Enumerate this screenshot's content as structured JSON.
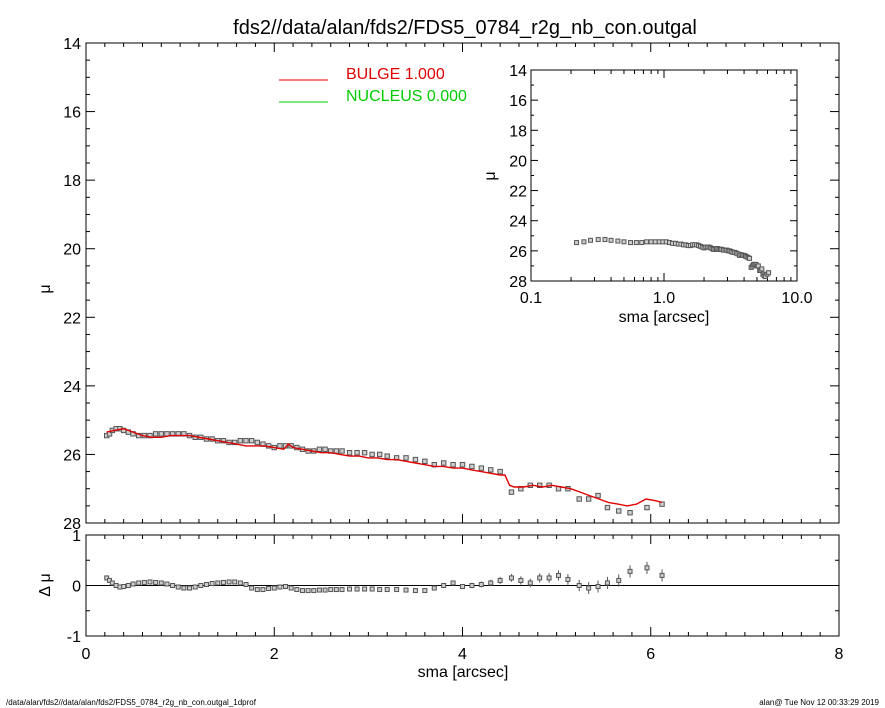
{
  "title": "fds2//data/alan/fds2/FDS5_0784_r2g_nb_con.outgal",
  "footer_left": "/data/alan/fds2//data/alan/fds2/FDS5_0784_r2g_nb_con.outgal_1dprof",
  "footer_right": "alan@  Tue Nov 12 00:33:29 2019",
  "colors": {
    "bulge": "#e00000",
    "nucleus": "#00cc00",
    "data": "#555555"
  },
  "chart_data": [
    {
      "type": "scatter",
      "panel": "main",
      "ylabel": "μ",
      "xlim": [
        0,
        8
      ],
      "ylim": [
        28,
        14
      ],
      "yticks": [
        "14",
        "16",
        "18",
        "20",
        "22",
        "24",
        "26",
        "28"
      ],
      "legend": [
        {
          "name": "BULGE  1.000",
          "color": "#e00000"
        },
        {
          "name": "NUCLEUS  0.000",
          "color": "#00cc00"
        }
      ],
      "legend_position": "top-center",
      "series": [
        {
          "name": "observed",
          "style": "markers",
          "x": [
            0.22,
            0.25,
            0.28,
            0.32,
            0.36,
            0.4,
            0.45,
            0.5,
            0.56,
            0.62,
            0.68,
            0.74,
            0.8,
            0.86,
            0.92,
            0.98,
            1.04,
            1.1,
            1.16,
            1.22,
            1.28,
            1.34,
            1.4,
            1.46,
            1.52,
            1.58,
            1.64,
            1.7,
            1.76,
            1.82,
            1.88,
            1.94,
            2.0,
            2.06,
            2.12,
            2.18,
            2.24,
            2.3,
            2.36,
            2.42,
            2.48,
            2.54,
            2.6,
            2.66,
            2.72,
            2.8,
            2.88,
            2.96,
            3.04,
            3.12,
            3.2,
            3.3,
            3.4,
            3.5,
            3.6,
            3.7,
            3.8,
            3.9,
            4.0,
            4.1,
            4.2,
            4.3,
            4.4,
            4.52,
            4.62,
            4.72,
            4.82,
            4.92,
            5.02,
            5.12,
            5.24,
            5.34,
            5.44,
            5.54,
            5.66,
            5.78,
            5.96,
            6.12
          ],
          "y": [
            25.45,
            25.4,
            25.3,
            25.25,
            25.25,
            25.3,
            25.35,
            25.4,
            25.45,
            25.45,
            25.45,
            25.4,
            25.4,
            25.4,
            25.4,
            25.4,
            25.4,
            25.45,
            25.5,
            25.5,
            25.55,
            25.55,
            25.6,
            25.6,
            25.65,
            25.65,
            25.6,
            25.6,
            25.6,
            25.65,
            25.7,
            25.75,
            25.8,
            25.75,
            25.75,
            25.75,
            25.8,
            25.85,
            25.9,
            25.9,
            25.85,
            25.85,
            25.9,
            25.9,
            25.9,
            25.95,
            25.95,
            25.95,
            26.0,
            26.0,
            26.05,
            26.1,
            26.1,
            26.15,
            26.2,
            26.3,
            26.25,
            26.3,
            26.3,
            26.35,
            26.4,
            26.45,
            26.5,
            27.1,
            27.0,
            26.9,
            26.9,
            26.9,
            27.0,
            27.0,
            27.3,
            27.3,
            27.2,
            27.55,
            27.65,
            27.7,
            27.55,
            27.45
          ]
        },
        {
          "name": "BULGE  1.000",
          "style": "line",
          "x": [
            0.22,
            0.3,
            0.4,
            0.5,
            0.6,
            0.7,
            0.8,
            0.9,
            1.0,
            1.1,
            1.2,
            1.3,
            1.4,
            1.5,
            1.6,
            1.7,
            1.8,
            1.9,
            2.0,
            2.1,
            2.15,
            2.2,
            2.3,
            2.4,
            2.5,
            2.6,
            2.7,
            2.8,
            2.9,
            3.0,
            3.1,
            3.2,
            3.3,
            3.4,
            3.5,
            3.6,
            3.7,
            3.8,
            3.9,
            4.0,
            4.1,
            4.2,
            4.3,
            4.4,
            4.45,
            4.5,
            4.55,
            4.65,
            4.75,
            4.85,
            4.95,
            5.05,
            5.15,
            5.25,
            5.35,
            5.45,
            5.55,
            5.65,
            5.75,
            5.85,
            5.95,
            6.05,
            6.12
          ],
          "y": [
            25.35,
            25.3,
            25.25,
            25.35,
            25.45,
            25.5,
            25.5,
            25.45,
            25.45,
            25.45,
            25.5,
            25.55,
            25.6,
            25.65,
            25.7,
            25.75,
            25.75,
            25.75,
            25.8,
            25.85,
            25.7,
            25.8,
            25.85,
            25.9,
            25.95,
            25.95,
            26.0,
            26.05,
            26.05,
            26.1,
            26.1,
            26.15,
            26.15,
            26.2,
            26.25,
            26.3,
            26.35,
            26.35,
            26.4,
            26.4,
            26.45,
            26.5,
            26.55,
            26.6,
            26.6,
            26.9,
            26.95,
            26.95,
            26.9,
            26.95,
            26.9,
            26.95,
            27.0,
            27.1,
            27.2,
            27.3,
            27.4,
            27.45,
            27.5,
            27.45,
            27.3,
            27.35,
            27.4
          ]
        }
      ]
    },
    {
      "type": "scatter",
      "panel": "residual",
      "xlabel": "sma [arcsec]",
      "ylabel": "Δ μ",
      "xlim": [
        0,
        8
      ],
      "ylim": [
        -1,
        1
      ],
      "xticks": [
        "0",
        "2",
        "4",
        "6",
        "8"
      ],
      "yticks": [
        "-1",
        "0",
        "1"
      ],
      "series": [
        {
          "name": "residual",
          "x": [
            0.22,
            0.25,
            0.28,
            0.32,
            0.36,
            0.4,
            0.45,
            0.5,
            0.56,
            0.62,
            0.68,
            0.74,
            0.8,
            0.86,
            0.92,
            0.98,
            1.04,
            1.1,
            1.16,
            1.22,
            1.28,
            1.34,
            1.4,
            1.46,
            1.52,
            1.58,
            1.64,
            1.7,
            1.76,
            1.82,
            1.88,
            1.94,
            2.0,
            2.06,
            2.12,
            2.18,
            2.24,
            2.3,
            2.36,
            2.42,
            2.48,
            2.54,
            2.6,
            2.66,
            2.72,
            2.8,
            2.88,
            2.96,
            3.04,
            3.12,
            3.2,
            3.3,
            3.4,
            3.5,
            3.6,
            3.7,
            3.8,
            3.9,
            4.0,
            4.1,
            4.2,
            4.3,
            4.4,
            4.52,
            4.62,
            4.72,
            4.82,
            4.92,
            5.02,
            5.12,
            5.24,
            5.34,
            5.44,
            5.54,
            5.66,
            5.78,
            5.96,
            6.12
          ],
          "y": [
            0.15,
            0.1,
            0.05,
            0.0,
            -0.03,
            -0.02,
            0.0,
            0.03,
            0.05,
            0.06,
            0.07,
            0.06,
            0.05,
            0.03,
            0.0,
            -0.03,
            -0.05,
            -0.05,
            -0.03,
            0.0,
            0.02,
            0.04,
            0.05,
            0.06,
            0.07,
            0.07,
            0.05,
            0.02,
            -0.05,
            -0.08,
            -0.08,
            -0.06,
            -0.05,
            -0.03,
            -0.02,
            -0.05,
            -0.08,
            -0.1,
            -0.1,
            -0.1,
            -0.09,
            -0.09,
            -0.08,
            -0.08,
            -0.08,
            -0.07,
            -0.07,
            -0.07,
            -0.07,
            -0.08,
            -0.08,
            -0.08,
            -0.09,
            -0.1,
            -0.1,
            -0.05,
            0.0,
            0.05,
            -0.02,
            0.0,
            0.02,
            0.05,
            0.1,
            0.15,
            0.1,
            0.05,
            0.15,
            0.15,
            0.2,
            0.12,
            0.0,
            -0.05,
            -0.02,
            0.05,
            0.1,
            0.28,
            0.35,
            0.2
          ]
        }
      ]
    },
    {
      "type": "scatter",
      "panel": "inset",
      "xlabel": "sma [arcsec]",
      "ylabel": "μ",
      "xscale": "log",
      "xlim": [
        0.1,
        10
      ],
      "ylim": [
        28,
        14
      ],
      "xticks": [
        "0.1",
        "1.0",
        "10.0"
      ],
      "yticks": [
        "14",
        "16",
        "18",
        "20",
        "22",
        "24",
        "26",
        "28"
      ],
      "series": [
        {
          "name": "observed",
          "x": [
            0.22,
            0.25,
            0.28,
            0.32,
            0.36,
            0.4,
            0.45,
            0.5,
            0.56,
            0.62,
            0.68,
            0.74,
            0.8,
            0.86,
            0.92,
            0.98,
            1.04,
            1.1,
            1.16,
            1.22,
            1.28,
            1.34,
            1.4,
            1.46,
            1.52,
            1.58,
            1.64,
            1.7,
            1.76,
            1.82,
            1.88,
            1.94,
            2.0,
            2.06,
            2.12,
            2.18,
            2.24,
            2.3,
            2.36,
            2.42,
            2.48,
            2.54,
            2.6,
            2.66,
            2.72,
            2.8,
            2.88,
            2.96,
            3.04,
            3.12,
            3.2,
            3.3,
            3.4,
            3.5,
            3.6,
            3.7,
            3.8,
            3.9,
            4.0,
            4.1,
            4.2,
            4.3,
            4.4,
            4.52,
            4.62,
            4.72,
            4.82,
            4.92,
            5.02,
            5.12,
            5.24,
            5.34,
            5.44,
            5.54,
            5.66,
            5.78,
            5.96,
            6.12
          ],
          "y": [
            25.45,
            25.4,
            25.3,
            25.25,
            25.25,
            25.3,
            25.35,
            25.4,
            25.45,
            25.45,
            25.45,
            25.4,
            25.4,
            25.4,
            25.4,
            25.4,
            25.4,
            25.45,
            25.5,
            25.5,
            25.55,
            25.55,
            25.6,
            25.6,
            25.65,
            25.65,
            25.6,
            25.6,
            25.6,
            25.65,
            25.7,
            25.75,
            25.8,
            25.75,
            25.75,
            25.75,
            25.8,
            25.85,
            25.9,
            25.9,
            25.85,
            25.85,
            25.9,
            25.9,
            25.9,
            25.95,
            25.95,
            25.95,
            26.0,
            26.0,
            26.05,
            26.1,
            26.1,
            26.15,
            26.2,
            26.3,
            26.25,
            26.3,
            26.3,
            26.35,
            26.4,
            26.45,
            26.5,
            27.1,
            27.0,
            26.9,
            26.9,
            26.9,
            27.0,
            27.0,
            27.3,
            27.3,
            27.2,
            27.55,
            27.65,
            27.7,
            27.55,
            27.45
          ]
        }
      ]
    }
  ]
}
